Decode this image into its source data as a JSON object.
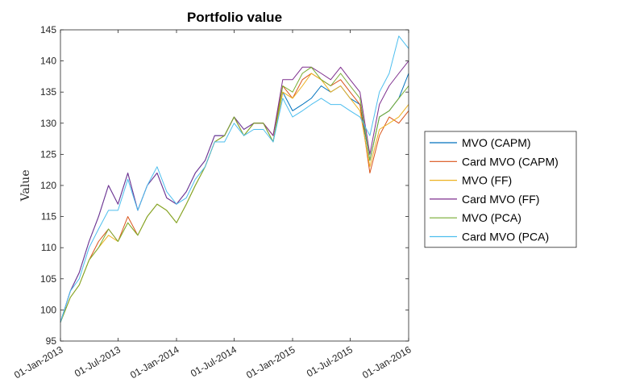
{
  "chart_data": {
    "type": "line",
    "title": "Portfolio value",
    "xlabel": "",
    "ylabel": "Value",
    "ylim": [
      95,
      145
    ],
    "yticks": [
      95,
      100,
      105,
      110,
      115,
      120,
      125,
      130,
      135,
      140,
      145
    ],
    "xlim": [
      "01-Jan-2013",
      "01-Jan-2016"
    ],
    "xtick_labels": [
      "01-Jan-2013",
      "01-Jul-2013",
      "01-Jan-2014",
      "01-Jul-2014",
      "01-Jan-2015",
      "01-Jul-2015",
      "01-Jan-2016"
    ],
    "grid": false,
    "legend_position": "right",
    "x": [
      "01-Jan-2013",
      "01-Feb-2013",
      "01-Mar-2013",
      "01-Apr-2013",
      "01-May-2013",
      "01-Jun-2013",
      "01-Jul-2013",
      "01-Aug-2013",
      "01-Sep-2013",
      "01-Oct-2013",
      "01-Nov-2013",
      "01-Dec-2013",
      "01-Jan-2014",
      "01-Feb-2014",
      "01-Mar-2014",
      "01-Apr-2014",
      "01-May-2014",
      "01-Jun-2014",
      "01-Jul-2014",
      "01-Aug-2014",
      "01-Sep-2014",
      "01-Oct-2014",
      "01-Nov-2014",
      "01-Dec-2014",
      "01-Jan-2015",
      "01-Feb-2015",
      "01-Mar-2015",
      "01-Apr-2015",
      "01-May-2015",
      "01-Jun-2015",
      "01-Jul-2015",
      "01-Aug-2015",
      "01-Sep-2015",
      "01-Oct-2015",
      "01-Nov-2015",
      "01-Dec-2015",
      "01-Jan-2016"
    ],
    "series": [
      {
        "name": "MVO (CAPM)",
        "color": "#0072BD",
        "values": [
          98,
          103,
          106,
          111,
          115,
          120,
          117,
          122,
          116,
          120,
          122,
          118,
          117,
          119,
          122,
          124,
          128,
          128,
          131,
          129,
          130,
          130,
          127,
          135,
          132,
          133,
          134,
          136,
          135,
          136,
          134,
          133,
          124,
          131,
          132,
          134,
          138
        ]
      },
      {
        "name": "Card MVO (CAPM)",
        "color": "#D95319",
        "values": [
          98,
          102,
          104,
          108,
          111,
          113,
          111,
          115,
          112,
          115,
          117,
          116,
          114,
          117,
          120,
          123,
          127,
          128,
          131,
          128,
          130,
          130,
          128,
          136,
          134,
          137,
          138,
          137,
          136,
          137,
          135,
          133,
          122,
          128,
          131,
          130,
          132
        ]
      },
      {
        "name": "MVO (FF)",
        "color": "#EDB120",
        "values": [
          98,
          102,
          104,
          108,
          110,
          112,
          111,
          114,
          112,
          115,
          117,
          116,
          114,
          117,
          120,
          123,
          127,
          128,
          131,
          128,
          130,
          130,
          127,
          135,
          134,
          136,
          138,
          137,
          135,
          136,
          134,
          132,
          123,
          129,
          130,
          131,
          133
        ]
      },
      {
        "name": "Card MVO (FF)",
        "color": "#7E2F8E",
        "values": [
          98,
          103,
          106,
          111,
          115,
          120,
          117,
          122,
          116,
          120,
          122,
          118,
          117,
          119,
          122,
          124,
          128,
          128,
          131,
          129,
          130,
          130,
          128,
          137,
          137,
          139,
          139,
          138,
          137,
          139,
          137,
          135,
          125,
          133,
          136,
          138,
          140
        ]
      },
      {
        "name": "MVO (PCA)",
        "color": "#77AC30",
        "values": [
          98,
          102,
          104,
          108,
          110,
          113,
          111,
          114,
          112,
          115,
          117,
          116,
          114,
          117,
          120,
          123,
          127,
          128,
          131,
          128,
          130,
          130,
          127,
          136,
          135,
          138,
          139,
          137,
          136,
          138,
          136,
          134,
          124,
          131,
          132,
          134,
          136
        ]
      },
      {
        "name": "Card MVO (PCA)",
        "color": "#4DBEEE",
        "values": [
          98,
          103,
          105,
          110,
          113,
          116,
          116,
          121,
          116,
          120,
          123,
          119,
          117,
          118,
          121,
          123,
          127,
          127,
          130,
          128,
          129,
          129,
          127,
          134,
          131,
          132,
          133,
          134,
          133,
          133,
          132,
          131,
          128,
          135,
          138,
          144,
          142
        ]
      }
    ]
  }
}
